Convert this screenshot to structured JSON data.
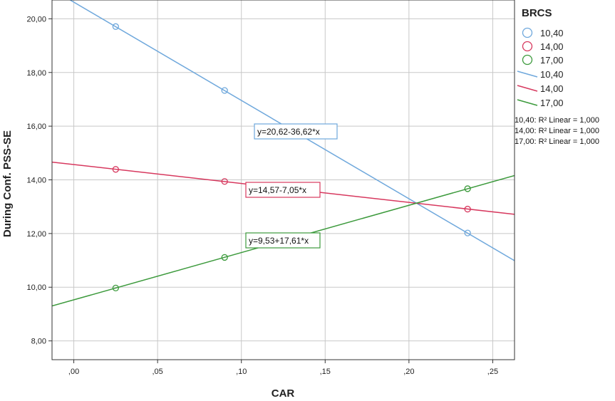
{
  "chart_data": {
    "type": "scatter",
    "title": "",
    "xlabel": "CAR",
    "ylabel": "During Conf. PSS-SE",
    "xlim": [
      -0.013,
      0.263
    ],
    "ylim": [
      7.3,
      20.7
    ],
    "x_ticks": [
      ",00",
      ",05",
      ",10",
      ",15",
      ",20",
      ",25"
    ],
    "x_tick_values": [
      0.0,
      0.05,
      0.1,
      0.15,
      0.2,
      0.25
    ],
    "y_ticks": [
      "8,00",
      "10,00",
      "12,00",
      "14,00",
      "16,00",
      "18,00",
      "20,00"
    ],
    "y_tick_values": [
      8,
      10,
      12,
      14,
      16,
      18,
      20
    ],
    "grid": true,
    "legend_title": "BRCS",
    "legend_placement": "right",
    "series": [
      {
        "name": "10,40",
        "color": "#6FA8DC",
        "x": [
          0.025,
          0.09,
          0.235
        ],
        "y": [
          19.71,
          17.33,
          12.02
        ],
        "intercept": 20.62,
        "slope": -36.62,
        "equation": "y=20,62-36,62*x",
        "r2_label": "10,40: R² Linear = 1,000"
      },
      {
        "name": "14,00",
        "color": "#D7385E",
        "x": [
          0.025,
          0.09,
          0.235
        ],
        "y": [
          14.39,
          13.94,
          12.91
        ],
        "intercept": 14.57,
        "slope": -7.05,
        "equation": "y=14,57-7,05*x",
        "r2_label": "14,00: R² Linear = 1,000"
      },
      {
        "name": "17,00",
        "color": "#3C9A3C",
        "x": [
          0.025,
          0.09,
          0.235
        ],
        "y": [
          9.97,
          11.11,
          13.67
        ],
        "intercept": 9.53,
        "slope": 17.61,
        "equation": "y=9,53+17,61*x",
        "r2_label": "17,00: R² Linear = 1,000"
      }
    ]
  }
}
